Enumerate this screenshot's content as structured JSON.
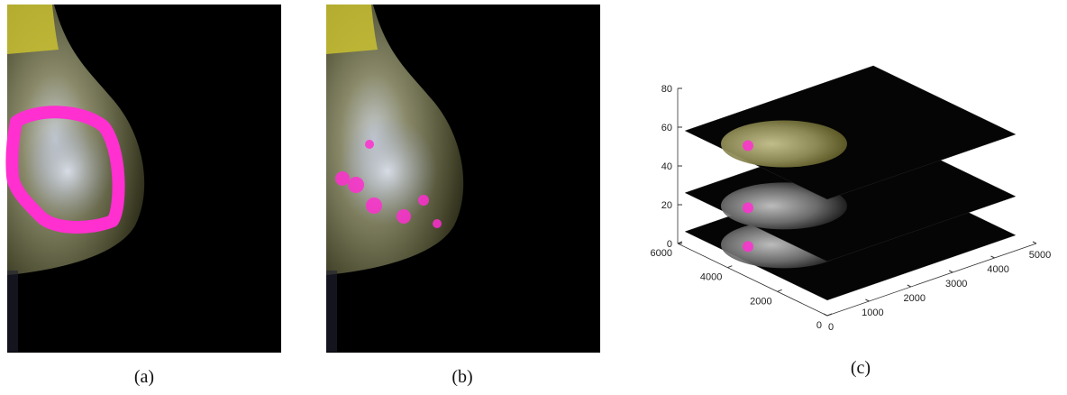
{
  "captions": [
    "(a)",
    "(b)",
    "(c)"
  ],
  "panel_c": {
    "zticks": [
      0,
      20,
      40,
      60,
      80
    ],
    "yticks": [
      6000,
      4000,
      2000,
      0
    ],
    "xticks": [
      0,
      1000,
      2000,
      3000,
      4000,
      5000
    ]
  }
}
